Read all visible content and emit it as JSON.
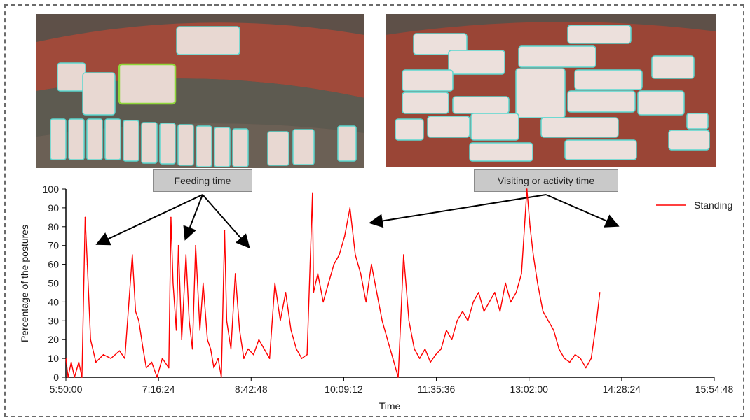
{
  "callouts": {
    "feeding": "Feeding time",
    "visiting": "Visiting or activity time"
  },
  "photos": {
    "left": {
      "description_icon": "pig-pen-photo-feeding"
    },
    "right": {
      "description_icon": "pig-pen-photo-activity"
    }
  },
  "colors": {
    "series": "#ff0000",
    "axis": "#000000",
    "photo_box": "#5ad8d0",
    "photo_box_highlight": "#8fd63a"
  },
  "chart_data": {
    "type": "line",
    "xlabel": "Time",
    "ylabel": "Percentage of the postures",
    "ylim": [
      0,
      100
    ],
    "yticks": [
      0,
      10,
      20,
      30,
      40,
      50,
      60,
      70,
      80,
      90,
      100
    ],
    "xticks": [
      "5:50:00",
      "7:16:24",
      "8:42:48",
      "10:09:12",
      "11:35:36",
      "13:02:00",
      "14:28:24",
      "15:54:48"
    ],
    "xlim": [
      "5:50:00",
      "15:54:48"
    ],
    "grid": false,
    "legend_position": "top-right",
    "series": [
      {
        "name": "Standing",
        "color": "#ff0000",
        "points": [
          [
            "5:50:00",
            10
          ],
          [
            "5:52:00",
            0
          ],
          [
            "5:55:00",
            8
          ],
          [
            "5:58:00",
            0
          ],
          [
            "6:02:00",
            8
          ],
          [
            "6:05:00",
            0
          ],
          [
            "6:08:00",
            85
          ],
          [
            "6:10:00",
            60
          ],
          [
            "6:13:00",
            20
          ],
          [
            "6:18:00",
            8
          ],
          [
            "6:25:00",
            12
          ],
          [
            "6:32:00",
            10
          ],
          [
            "6:40:00",
            14
          ],
          [
            "6:45:00",
            10
          ],
          [
            "6:52:00",
            65
          ],
          [
            "6:55:00",
            35
          ],
          [
            "6:58:00",
            30
          ],
          [
            "7:02:00",
            15
          ],
          [
            "7:05:00",
            5
          ],
          [
            "7:10:00",
            8
          ],
          [
            "7:15:00",
            0
          ],
          [
            "7:20:00",
            10
          ],
          [
            "7:26:00",
            5
          ],
          [
            "7:28:00",
            85
          ],
          [
            "7:30:00",
            50
          ],
          [
            "7:33:00",
            25
          ],
          [
            "7:35:00",
            70
          ],
          [
            "7:38:00",
            20
          ],
          [
            "7:42:00",
            65
          ],
          [
            "7:45:00",
            30
          ],
          [
            "7:48:00",
            15
          ],
          [
            "7:51:00",
            70
          ],
          [
            "7:55:00",
            25
          ],
          [
            "7:58:00",
            50
          ],
          [
            "8:02:00",
            20
          ],
          [
            "8:05:00",
            15
          ],
          [
            "8:08:00",
            5
          ],
          [
            "8:12:00",
            10
          ],
          [
            "8:15:00",
            0
          ],
          [
            "8:18:00",
            78
          ],
          [
            "8:20:00",
            30
          ],
          [
            "8:24:00",
            15
          ],
          [
            "8:28:00",
            55
          ],
          [
            "8:32:00",
            25
          ],
          [
            "8:36:00",
            10
          ],
          [
            "8:40:00",
            15
          ],
          [
            "8:45:00",
            12
          ],
          [
            "8:50:00",
            20
          ],
          [
            "8:55:00",
            15
          ],
          [
            "9:00:00",
            10
          ],
          [
            "9:05:00",
            50
          ],
          [
            "9:10:00",
            30
          ],
          [
            "9:15:00",
            45
          ],
          [
            "9:20:00",
            25
          ],
          [
            "9:25:00",
            15
          ],
          [
            "9:30:00",
            10
          ],
          [
            "9:35:00",
            12
          ],
          [
            "9:40:00",
            98
          ],
          [
            "9:41:00",
            45
          ],
          [
            "9:45:00",
            55
          ],
          [
            "9:50:00",
            40
          ],
          [
            "9:55:00",
            50
          ],
          [
            "10:00:00",
            60
          ],
          [
            "10:05:00",
            65
          ],
          [
            "10:10:00",
            75
          ],
          [
            "10:15:00",
            90
          ],
          [
            "10:20:00",
            65
          ],
          [
            "10:25:00",
            55
          ],
          [
            "10:30:00",
            40
          ],
          [
            "10:35:00",
            60
          ],
          [
            "10:40:00",
            45
          ],
          [
            "10:45:00",
            30
          ],
          [
            "10:50:00",
            20
          ],
          [
            "10:55:00",
            10
          ],
          [
            "11:00:00",
            0
          ],
          [
            "11:05:00",
            65
          ],
          [
            "11:10:00",
            30
          ],
          [
            "11:15:00",
            15
          ],
          [
            "11:20:00",
            10
          ],
          [
            "11:25:00",
            15
          ],
          [
            "11:30:00",
            8
          ],
          [
            "11:35:00",
            12
          ],
          [
            "11:40:00",
            15
          ],
          [
            "11:45:00",
            25
          ],
          [
            "11:50:00",
            20
          ],
          [
            "11:55:00",
            30
          ],
          [
            "12:00:00",
            35
          ],
          [
            "12:05:00",
            30
          ],
          [
            "12:10:00",
            40
          ],
          [
            "12:15:00",
            45
          ],
          [
            "12:20:00",
            35
          ],
          [
            "12:25:00",
            40
          ],
          [
            "12:30:00",
            45
          ],
          [
            "12:35:00",
            35
          ],
          [
            "12:40:00",
            50
          ],
          [
            "12:45:00",
            40
          ],
          [
            "12:50:00",
            45
          ],
          [
            "12:55:00",
            55
          ],
          [
            "13:00:00",
            100
          ],
          [
            "13:03:00",
            80
          ],
          [
            "13:06:00",
            65
          ],
          [
            "13:10:00",
            50
          ],
          [
            "13:15:00",
            35
          ],
          [
            "13:20:00",
            30
          ],
          [
            "13:25:00",
            25
          ],
          [
            "13:30:00",
            15
          ],
          [
            "13:35:00",
            10
          ],
          [
            "13:40:00",
            8
          ],
          [
            "13:45:00",
            12
          ],
          [
            "13:50:00",
            10
          ],
          [
            "13:55:00",
            5
          ],
          [
            "14:00:00",
            10
          ],
          [
            "14:05:00",
            30
          ],
          [
            "14:08:00",
            45
          ]
        ]
      }
    ]
  }
}
